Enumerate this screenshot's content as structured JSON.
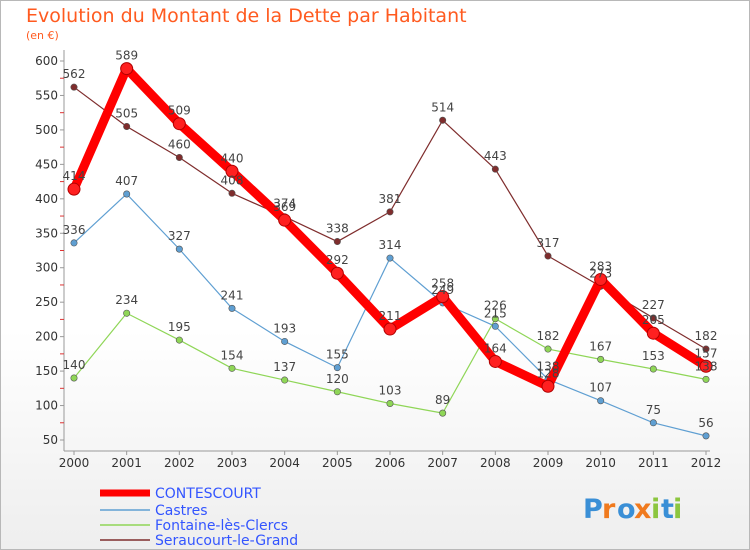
{
  "chart_data": {
    "type": "line",
    "title": "Evolution du Montant de la Dette par Habitant",
    "subtitle": "(en €)",
    "xlabel": "",
    "ylabel": "",
    "categories": [
      "2000",
      "2001",
      "2002",
      "2003",
      "2004",
      "2005",
      "2006",
      "2007",
      "2008",
      "2009",
      "2010",
      "2011",
      "2012"
    ],
    "ylim": [
      50,
      600
    ],
    "yticks": [
      50,
      100,
      150,
      200,
      250,
      300,
      350,
      400,
      450,
      500,
      550,
      600
    ],
    "grid": false,
    "legend_position": "bottom-left",
    "series": [
      {
        "name": "CONTESCOURT",
        "color": "#ff0000",
        "values": [
          414,
          589,
          509,
          440,
          369,
          292,
          211,
          258,
          164,
          128,
          283,
          205,
          157
        ],
        "labels": [
          "414",
          "589",
          "509",
          "440",
          "369",
          "292",
          "211",
          "258",
          "164",
          "128",
          "283",
          "205",
          "157"
        ]
      },
      {
        "name": "Castres",
        "color": "#5f9fd2",
        "values": [
          336,
          407,
          327,
          241,
          193,
          155,
          314,
          249,
          215,
          138,
          107,
          75,
          56
        ],
        "labels": [
          "336",
          "407",
          "327",
          "241",
          "193",
          "155",
          "314",
          "249",
          "215",
          "138",
          "107",
          "75",
          "56"
        ]
      },
      {
        "name": "Fontaine-lès-Clercs",
        "color": "#8fd657",
        "values": [
          140,
          234,
          195,
          154,
          137,
          120,
          103,
          89,
          226,
          182,
          167,
          153,
          138
        ],
        "labels": [
          "140",
          "234",
          "195",
          "154",
          "137",
          "120",
          "103",
          "89",
          "226",
          "182",
          "167",
          "153",
          "138"
        ]
      },
      {
        "name": "Seraucourt-le-Grand",
        "color": "#7f2d2d",
        "values": [
          562,
          505,
          460,
          408,
          374,
          338,
          381,
          514,
          443,
          317,
          273,
          227,
          182
        ],
        "labels": [
          "562",
          "505",
          "460",
          "408",
          "374",
          "338",
          "381",
          "514",
          "443",
          "317",
          "273",
          "227",
          "182"
        ]
      }
    ]
  },
  "logo": {
    "text": "Proxiti",
    "letter_colors": [
      "#3a8fd6",
      "#f07a1e",
      "#3a8fd6",
      "#f07a1e",
      "#8cc63f",
      "#3a8fd6",
      "#8cc63f"
    ]
  }
}
